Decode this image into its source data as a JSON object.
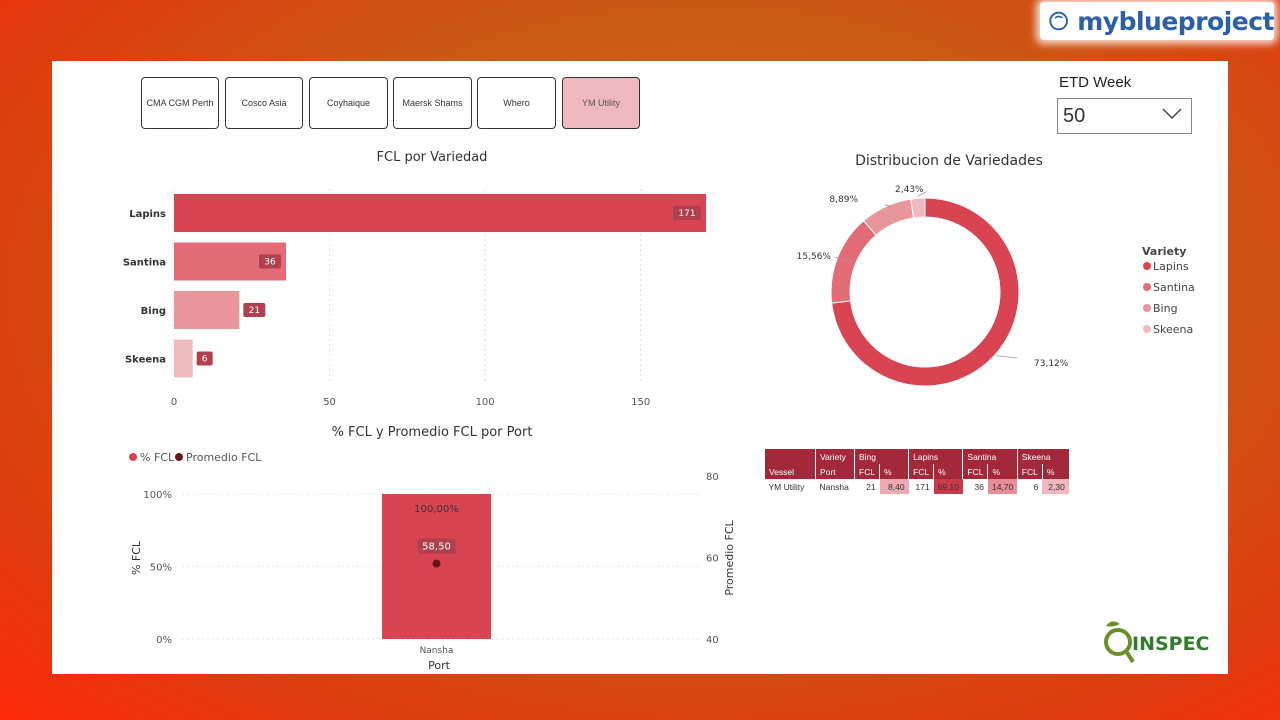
{
  "brand": {
    "name": "myblueproject"
  },
  "slicer": {
    "vessels": [
      {
        "label": "CMA CGM Perth",
        "selected": false
      },
      {
        "label": "Cosco Asia",
        "selected": false
      },
      {
        "label": "Coyhaique",
        "selected": false
      },
      {
        "label": "Maersk Shams",
        "selected": false
      },
      {
        "label": "Whero",
        "selected": false
      },
      {
        "label": "YM Utility",
        "selected": true
      }
    ]
  },
  "etd": {
    "title": "ETD Week",
    "value": "50"
  },
  "colors": {
    "lapins": "#d94452",
    "santina": "#e26b76",
    "bing": "#e8959c",
    "skeena": "#f0b9be",
    "label_bg": "#b1404e",
    "header": "#a2283a"
  },
  "chart_data": [
    {
      "type": "bar",
      "orientation": "horizontal",
      "title": "FCL por Variedad",
      "categories": [
        "Lapins",
        "Santina",
        "Bing",
        "Skeena"
      ],
      "values": [
        171,
        36,
        21,
        6
      ],
      "data_labels": [
        "171",
        "36",
        "21",
        "6"
      ],
      "x_ticks": [
        "0",
        "50",
        "100",
        "150"
      ],
      "xlim": [
        0,
        171
      ],
      "grid": true
    },
    {
      "type": "pie",
      "title": "Distribucion de Variedades",
      "legend_title": "Variety",
      "legend_position": "right",
      "slices": [
        {
          "name": "Lapins",
          "value": 73.12,
          "label": "73,12%"
        },
        {
          "name": "Santina",
          "value": 15.56,
          "label": "15,56%"
        },
        {
          "name": "Bing",
          "value": 8.89,
          "label": "8,89%"
        },
        {
          "name": "Skeena",
          "value": 2.43,
          "label": "2,43%"
        }
      ]
    },
    {
      "type": "bar",
      "title": "% FCL y Promedio FCL por Port",
      "legend": [
        "% FCL",
        "Promedio FCL"
      ],
      "legend_position": "top-left",
      "xlabel": "Port",
      "ylabel_left": "% FCL",
      "ylabel_right": "Promedio FCL",
      "categories": [
        "Nansha"
      ],
      "series": [
        {
          "name": "% FCL",
          "values": [
            100
          ],
          "label": "100,00%"
        },
        {
          "name": "Promedio FCL",
          "values": [
            58.5
          ],
          "label": "58,50"
        }
      ],
      "y_left_ticks": [
        "100%",
        "50%",
        "0%"
      ],
      "y_left_range": [
        0,
        100
      ],
      "y_right_ticks": [
        "80",
        "60",
        "40"
      ],
      "y_right_range": [
        40,
        80
      ]
    }
  ],
  "matrix": {
    "header1": [
      "",
      "Variety",
      "Bing",
      "Lapins",
      "Santina",
      "Skeena"
    ],
    "header2": [
      "Vessel",
      "Port",
      "FCL",
      "%",
      "FCL",
      "%",
      "FCL",
      "%",
      "FCL",
      "%"
    ],
    "rows": [
      {
        "vessel": "YM Utility",
        "port": "Nansha",
        "cells": [
          "21",
          "8,40",
          "171",
          "69,10",
          "36",
          "14,70",
          "6",
          "2,30"
        ]
      }
    ]
  },
  "footer_logo": {
    "text": "INSPEC"
  }
}
